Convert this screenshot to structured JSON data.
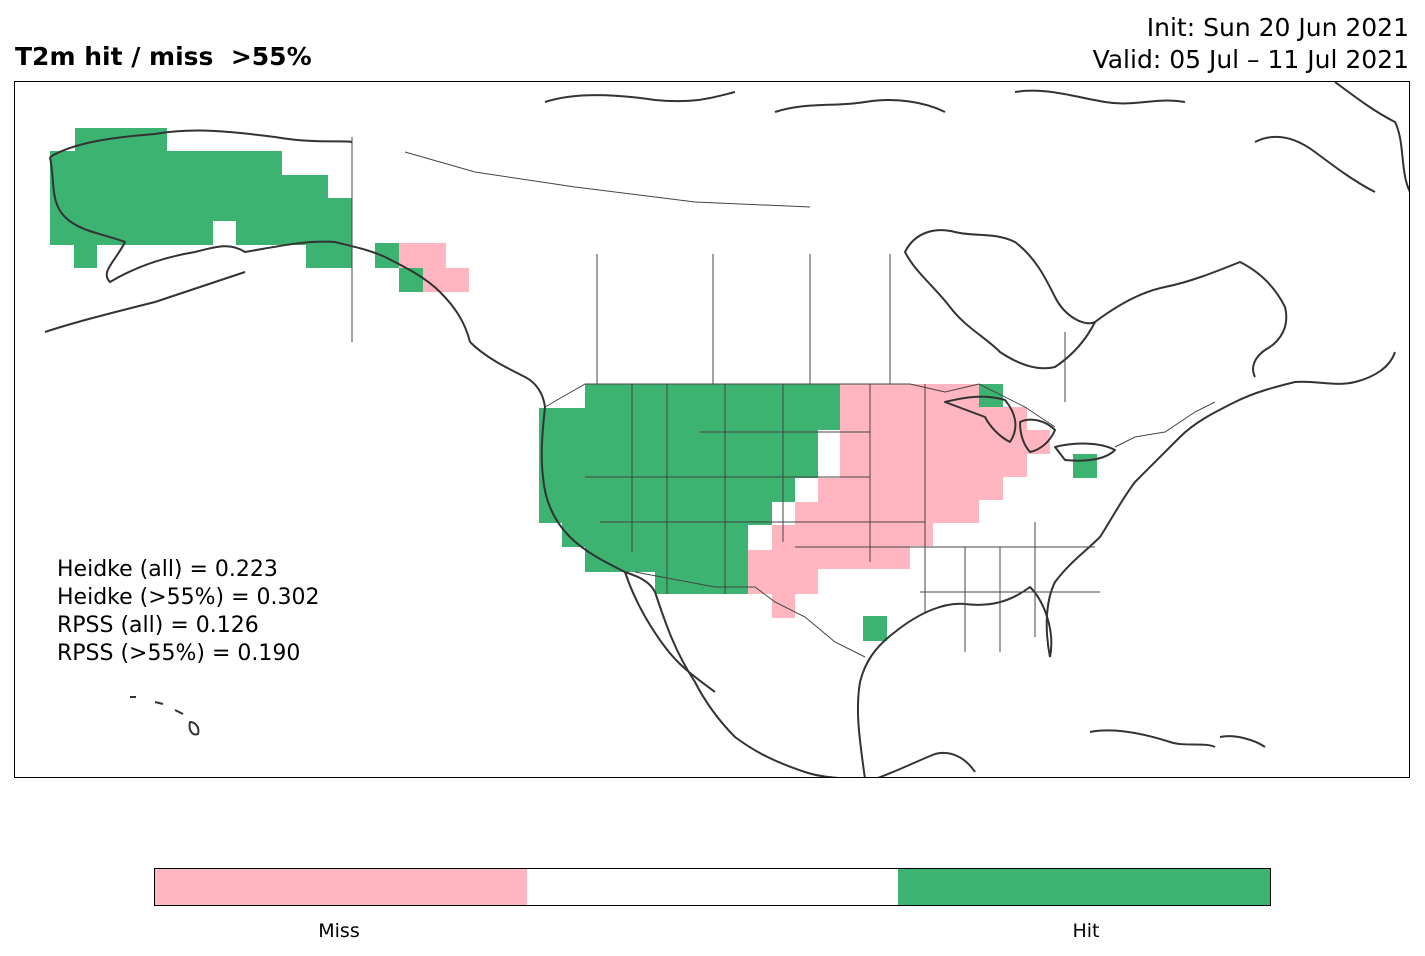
{
  "title": {
    "left": "T2m hit / miss  >55%",
    "init": "Init: Sun 20 Jun 2021",
    "valid": "Valid: 05 Jul – 11 Jul 2021"
  },
  "stats": [
    "Heidke (all) = 0.223",
    "Heidke (>55%) = 0.302",
    "RPSS (all) = 0.126",
    "RPSS (>55%) = 0.190"
  ],
  "colorbar": {
    "segments": [
      {
        "label": "Miss",
        "color": "#ffb6c1"
      },
      {
        "label": "",
        "color": "#ffffff"
      },
      {
        "label": "Hit",
        "color": "#3cb371"
      }
    ]
  },
  "map": {
    "coastline_color": "#333333",
    "border_color": "#444444"
  }
}
